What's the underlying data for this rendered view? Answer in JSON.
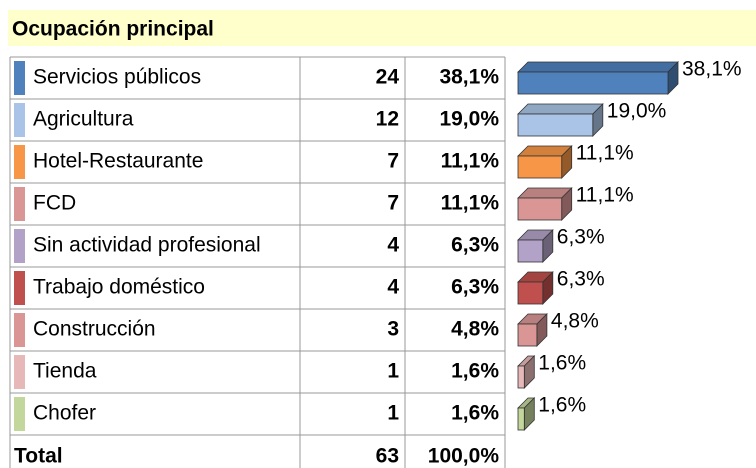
{
  "chart_data": {
    "type": "bar",
    "title": "Ocupación principal",
    "categories": [
      "Servicios públicos",
      "Agricultura",
      "Hotel-Restaurante",
      "FCD",
      "Sin actividad profesional",
      "Trabajo doméstico",
      "Construcción",
      "Tienda",
      "Chofer"
    ],
    "counts": [
      24,
      12,
      7,
      7,
      4,
      4,
      3,
      1,
      1
    ],
    "values": [
      38.1,
      19.0,
      11.1,
      11.1,
      6.3,
      6.3,
      4.8,
      1.6,
      1.6
    ],
    "value_labels": [
      "38,1%",
      "19,0%",
      "11,1%",
      "11,1%",
      "6,3%",
      "6,3%",
      "4,8%",
      "1,6%",
      "1,6%"
    ],
    "colors": [
      "#4f81bd",
      "#a9c4e6",
      "#f79646",
      "#d99694",
      "#b3a2c7",
      "#c0504d",
      "#d99694",
      "#e6b9b8",
      "#c3d69b"
    ],
    "total_label": "Total",
    "total_count": 63,
    "total_value": 100.0,
    "total_value_label": "100,0%"
  }
}
